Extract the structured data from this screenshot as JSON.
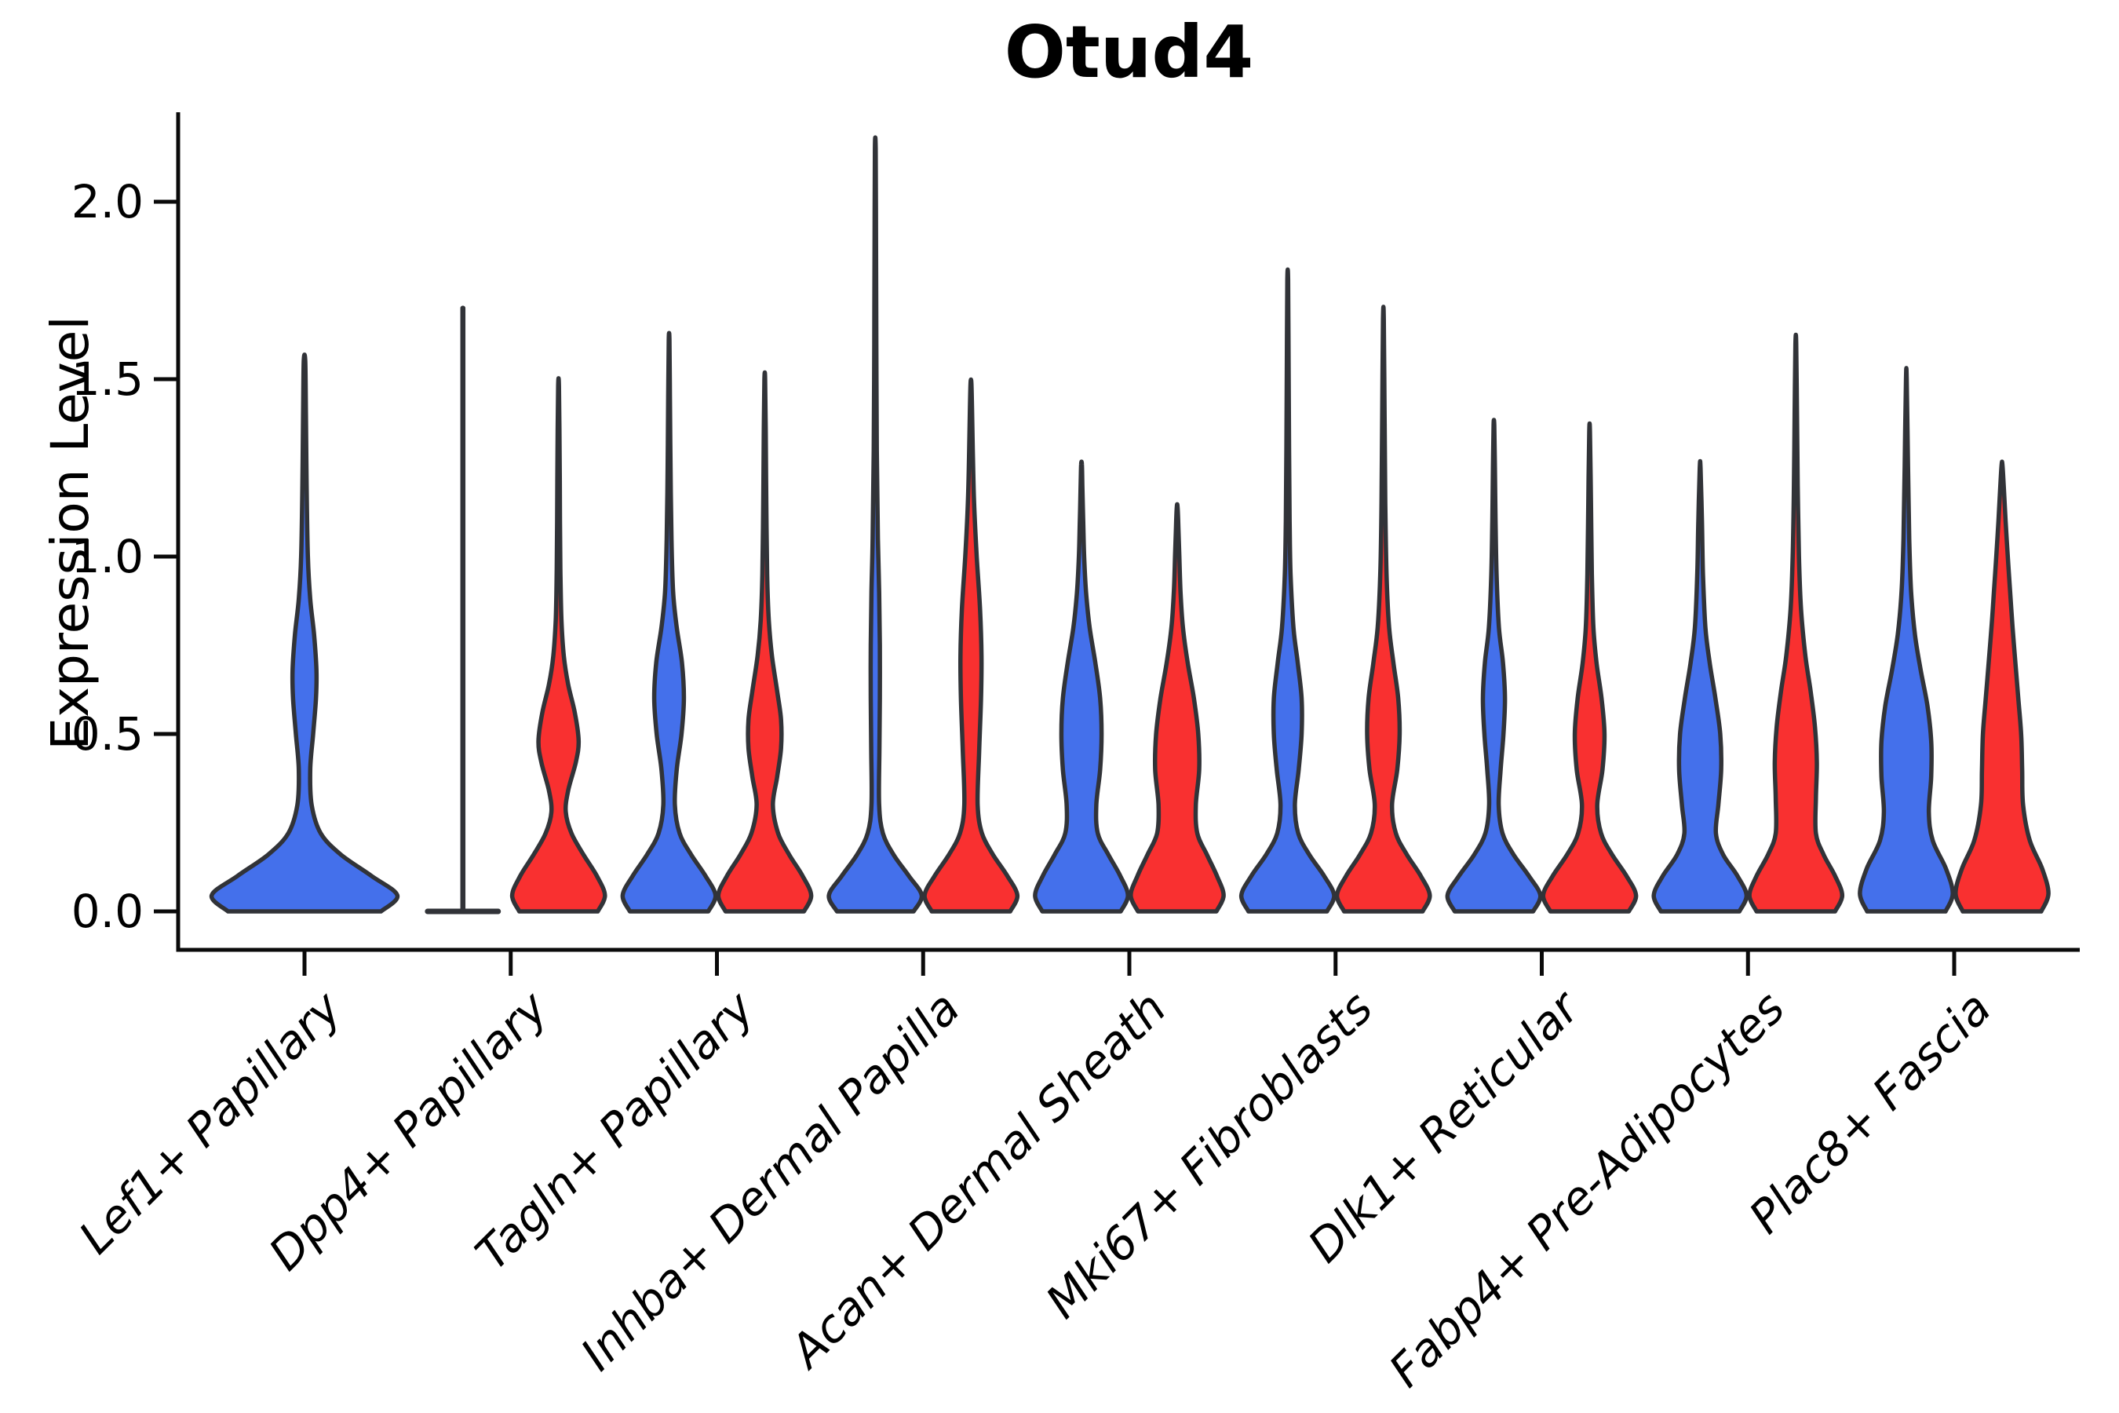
{
  "title": "Otud4",
  "axes": {
    "ylabel": "Expression Level",
    "ytick_labels": [
      "0.0",
      "0.5",
      "1.0",
      "1.5",
      "2.0"
    ],
    "ytick_values": [
      0.0,
      0.5,
      1.0,
      1.5,
      2.0
    ]
  },
  "colors": {
    "group_blue": "#4470EB",
    "group_red": "#F93030",
    "violin_outline": "#313338",
    "axis": "#0a0a0a"
  },
  "chart_data": {
    "type": "violin",
    "title": "Otud4",
    "xlabel": "",
    "ylabel": "Expression Level",
    "ylim": [
      0,
      2.25
    ],
    "yticks": [
      0.0,
      0.5,
      1.0,
      1.5,
      2.0
    ],
    "grid": false,
    "legend": "none",
    "categories": [
      "Lef1+ Papillary",
      "Dpp4+ Papillary",
      "Tagln+ Papillary",
      "Inhba+ Dermal Papilla",
      "Acan+ Dermal Sheath",
      "Mki67+ Fibroblasts",
      "Dlk1+ Reticular",
      "Fabp4+ Pre-Adipocytes",
      "Plac8+ Fascia"
    ],
    "groups": [
      {
        "name": "blue",
        "color": "#4470EB"
      },
      {
        "name": "red",
        "color": "#F93030"
      }
    ],
    "violins": [
      {
        "category": "Lef1+ Papillary",
        "group": "blue",
        "side_offset": 0,
        "halfwidth_frac": 0.464,
        "max_expression": 1.55,
        "collapsed": false,
        "density_profile": [
          [
            0,
            0.8
          ],
          [
            0.045,
            0.97
          ],
          [
            0.1,
            0.7
          ],
          [
            0.16,
            0.38
          ],
          [
            0.22,
            0.17
          ],
          [
            0.3,
            0.075
          ],
          [
            0.4,
            0.06
          ],
          [
            0.5,
            0.09
          ],
          [
            0.6,
            0.12
          ],
          [
            0.68,
            0.125
          ],
          [
            0.78,
            0.1
          ],
          [
            0.88,
            0.06
          ],
          [
            1.0,
            0.035
          ],
          [
            1.2,
            0.022
          ],
          [
            1.4,
            0.015
          ],
          [
            1.55,
            0.008
          ]
        ]
      },
      {
        "category": "Dpp4+ Papillary",
        "group": "blue",
        "side_offset": -0.232,
        "halfwidth_frac": 0.171,
        "max_expression": 1.7,
        "collapsed": true,
        "density_profile": [
          [
            0,
            1.0
          ],
          [
            1.7,
            0.0
          ]
        ]
      },
      {
        "category": "Dpp4+ Papillary",
        "group": "red",
        "side_offset": 0.232,
        "halfwidth_frac": 0.232,
        "max_expression": 1.48,
        "collapsed": false,
        "density_profile": [
          [
            0,
            0.82
          ],
          [
            0.045,
            0.97
          ],
          [
            0.1,
            0.8
          ],
          [
            0.16,
            0.52
          ],
          [
            0.22,
            0.27
          ],
          [
            0.28,
            0.15
          ],
          [
            0.34,
            0.2
          ],
          [
            0.42,
            0.36
          ],
          [
            0.48,
            0.42
          ],
          [
            0.56,
            0.34
          ],
          [
            0.64,
            0.2
          ],
          [
            0.72,
            0.11
          ],
          [
            0.82,
            0.06
          ],
          [
            0.95,
            0.04
          ],
          [
            1.1,
            0.03
          ],
          [
            1.3,
            0.022
          ],
          [
            1.48,
            0.008
          ]
        ]
      },
      {
        "category": "Tagln+ Papillary",
        "group": "blue",
        "side_offset": -0.232,
        "halfwidth_frac": 0.232,
        "max_expression": 1.61,
        "collapsed": false,
        "density_profile": [
          [
            0,
            0.82
          ],
          [
            0.045,
            0.97
          ],
          [
            0.1,
            0.76
          ],
          [
            0.16,
            0.46
          ],
          [
            0.22,
            0.22
          ],
          [
            0.3,
            0.12
          ],
          [
            0.4,
            0.16
          ],
          [
            0.5,
            0.26
          ],
          [
            0.6,
            0.31
          ],
          [
            0.7,
            0.27
          ],
          [
            0.8,
            0.16
          ],
          [
            0.9,
            0.085
          ],
          [
            1.05,
            0.05
          ],
          [
            1.25,
            0.03
          ],
          [
            1.45,
            0.018
          ],
          [
            1.61,
            0.008
          ]
        ]
      },
      {
        "category": "Tagln+ Papillary",
        "group": "red",
        "side_offset": 0.232,
        "halfwidth_frac": 0.232,
        "max_expression": 1.5,
        "collapsed": false,
        "density_profile": [
          [
            0,
            0.82
          ],
          [
            0.045,
            0.97
          ],
          [
            0.1,
            0.79
          ],
          [
            0.16,
            0.51
          ],
          [
            0.22,
            0.28
          ],
          [
            0.3,
            0.17
          ],
          [
            0.38,
            0.26
          ],
          [
            0.46,
            0.34
          ],
          [
            0.54,
            0.34
          ],
          [
            0.62,
            0.26
          ],
          [
            0.72,
            0.15
          ],
          [
            0.82,
            0.085
          ],
          [
            0.95,
            0.05
          ],
          [
            1.15,
            0.032
          ],
          [
            1.35,
            0.02
          ],
          [
            1.5,
            0.008
          ]
        ]
      },
      {
        "category": "Inhba+ Dermal Papilla",
        "group": "blue",
        "side_offset": -0.232,
        "halfwidth_frac": 0.232,
        "max_expression": 2.15,
        "collapsed": false,
        "density_profile": [
          [
            0,
            0.8
          ],
          [
            0.045,
            0.97
          ],
          [
            0.1,
            0.7
          ],
          [
            0.16,
            0.38
          ],
          [
            0.22,
            0.16
          ],
          [
            0.3,
            0.08
          ],
          [
            0.45,
            0.085
          ],
          [
            0.6,
            0.095
          ],
          [
            0.75,
            0.095
          ],
          [
            0.9,
            0.08
          ],
          [
            1.05,
            0.055
          ],
          [
            1.3,
            0.032
          ],
          [
            1.6,
            0.022
          ],
          [
            1.9,
            0.015
          ],
          [
            2.15,
            0.008
          ]
        ]
      },
      {
        "category": "Inhba+ Dermal Papilla",
        "group": "red",
        "side_offset": 0.232,
        "halfwidth_frac": 0.232,
        "max_expression": 1.49,
        "collapsed": false,
        "density_profile": [
          [
            0,
            0.82
          ],
          [
            0.045,
            0.97
          ],
          [
            0.1,
            0.76
          ],
          [
            0.16,
            0.46
          ],
          [
            0.22,
            0.23
          ],
          [
            0.3,
            0.14
          ],
          [
            0.45,
            0.17
          ],
          [
            0.6,
            0.21
          ],
          [
            0.72,
            0.22
          ],
          [
            0.85,
            0.19
          ],
          [
            1.0,
            0.12
          ],
          [
            1.15,
            0.065
          ],
          [
            1.3,
            0.038
          ],
          [
            1.42,
            0.022
          ],
          [
            1.49,
            0.008
          ]
        ]
      },
      {
        "category": "Acan+ Dermal Sheath",
        "group": "blue",
        "side_offset": -0.232,
        "halfwidth_frac": 0.232,
        "max_expression": 1.26,
        "collapsed": false,
        "density_profile": [
          [
            0,
            0.82
          ],
          [
            0.045,
            0.97
          ],
          [
            0.1,
            0.81
          ],
          [
            0.16,
            0.56
          ],
          [
            0.22,
            0.34
          ],
          [
            0.3,
            0.31
          ],
          [
            0.4,
            0.39
          ],
          [
            0.5,
            0.42
          ],
          [
            0.6,
            0.39
          ],
          [
            0.7,
            0.29
          ],
          [
            0.8,
            0.17
          ],
          [
            0.9,
            0.095
          ],
          [
            1.0,
            0.055
          ],
          [
            1.1,
            0.035
          ],
          [
            1.2,
            0.018
          ],
          [
            1.26,
            0.008
          ]
        ]
      },
      {
        "category": "Acan+ Dermal Sheath",
        "group": "red",
        "side_offset": 0.232,
        "halfwidth_frac": 0.232,
        "max_expression": 1.14,
        "collapsed": false,
        "density_profile": [
          [
            0,
            0.82
          ],
          [
            0.045,
            0.97
          ],
          [
            0.1,
            0.83
          ],
          [
            0.16,
            0.62
          ],
          [
            0.22,
            0.42
          ],
          [
            0.3,
            0.39
          ],
          [
            0.4,
            0.46
          ],
          [
            0.5,
            0.44
          ],
          [
            0.6,
            0.35
          ],
          [
            0.7,
            0.22
          ],
          [
            0.8,
            0.12
          ],
          [
            0.9,
            0.07
          ],
          [
            1.0,
            0.045
          ],
          [
            1.08,
            0.026
          ],
          [
            1.14,
            0.008
          ]
        ]
      },
      {
        "category": "Mki67+ Fibroblasts",
        "group": "blue",
        "side_offset": -0.232,
        "halfwidth_frac": 0.232,
        "max_expression": 1.78,
        "collapsed": false,
        "density_profile": [
          [
            0,
            0.82
          ],
          [
            0.045,
            0.97
          ],
          [
            0.1,
            0.76
          ],
          [
            0.16,
            0.45
          ],
          [
            0.22,
            0.22
          ],
          [
            0.3,
            0.15
          ],
          [
            0.4,
            0.23
          ],
          [
            0.5,
            0.29
          ],
          [
            0.6,
            0.29
          ],
          [
            0.7,
            0.21
          ],
          [
            0.8,
            0.12
          ],
          [
            0.95,
            0.06
          ],
          [
            1.1,
            0.04
          ],
          [
            1.3,
            0.028
          ],
          [
            1.55,
            0.018
          ],
          [
            1.78,
            0.008
          ]
        ]
      },
      {
        "category": "Mki67+ Fibroblasts",
        "group": "red",
        "side_offset": 0.232,
        "halfwidth_frac": 0.232,
        "max_expression": 1.67,
        "collapsed": false,
        "density_profile": [
          [
            0,
            0.82
          ],
          [
            0.045,
            0.97
          ],
          [
            0.1,
            0.78
          ],
          [
            0.16,
            0.49
          ],
          [
            0.22,
            0.26
          ],
          [
            0.3,
            0.18
          ],
          [
            0.4,
            0.29
          ],
          [
            0.5,
            0.34
          ],
          [
            0.6,
            0.31
          ],
          [
            0.7,
            0.21
          ],
          [
            0.8,
            0.12
          ],
          [
            0.95,
            0.065
          ],
          [
            1.15,
            0.04
          ],
          [
            1.4,
            0.025
          ],
          [
            1.67,
            0.008
          ]
        ]
      },
      {
        "category": "Dlk1+ Reticular",
        "group": "blue",
        "side_offset": -0.232,
        "halfwidth_frac": 0.232,
        "max_expression": 1.37,
        "collapsed": false,
        "density_profile": [
          [
            0,
            0.82
          ],
          [
            0.045,
            0.97
          ],
          [
            0.1,
            0.73
          ],
          [
            0.16,
            0.41
          ],
          [
            0.22,
            0.18
          ],
          [
            0.3,
            0.1
          ],
          [
            0.4,
            0.14
          ],
          [
            0.5,
            0.2
          ],
          [
            0.6,
            0.23
          ],
          [
            0.7,
            0.19
          ],
          [
            0.8,
            0.105
          ],
          [
            0.95,
            0.055
          ],
          [
            1.1,
            0.034
          ],
          [
            1.25,
            0.02
          ],
          [
            1.37,
            0.008
          ]
        ]
      },
      {
        "category": "Dlk1+ Reticular",
        "group": "red",
        "side_offset": 0.232,
        "halfwidth_frac": 0.232,
        "max_expression": 1.35,
        "collapsed": false,
        "density_profile": [
          [
            0,
            0.82
          ],
          [
            0.045,
            0.97
          ],
          [
            0.1,
            0.77
          ],
          [
            0.16,
            0.47
          ],
          [
            0.22,
            0.24
          ],
          [
            0.3,
            0.16
          ],
          [
            0.4,
            0.27
          ],
          [
            0.5,
            0.31
          ],
          [
            0.6,
            0.25
          ],
          [
            0.7,
            0.145
          ],
          [
            0.8,
            0.08
          ],
          [
            0.95,
            0.047
          ],
          [
            1.15,
            0.028
          ],
          [
            1.35,
            0.008
          ]
        ]
      },
      {
        "category": "Fabp4+ Pre-Adipocytes",
        "group": "blue",
        "side_offset": -0.232,
        "halfwidth_frac": 0.232,
        "max_expression": 1.25,
        "collapsed": false,
        "density_profile": [
          [
            0,
            0.82
          ],
          [
            0.045,
            0.97
          ],
          [
            0.1,
            0.78
          ],
          [
            0.16,
            0.48
          ],
          [
            0.22,
            0.33
          ],
          [
            0.3,
            0.38
          ],
          [
            0.4,
            0.44
          ],
          [
            0.5,
            0.42
          ],
          [
            0.6,
            0.32
          ],
          [
            0.7,
            0.2
          ],
          [
            0.8,
            0.11
          ],
          [
            0.95,
            0.06
          ],
          [
            1.1,
            0.038
          ],
          [
            1.25,
            0.008
          ]
        ]
      },
      {
        "category": "Fabp4+ Pre-Adipocytes",
        "group": "red",
        "side_offset": 0.232,
        "halfwidth_frac": 0.232,
        "max_expression": 1.6,
        "collapsed": false,
        "density_profile": [
          [
            0,
            0.82
          ],
          [
            0.045,
            0.97
          ],
          [
            0.1,
            0.82
          ],
          [
            0.16,
            0.58
          ],
          [
            0.22,
            0.42
          ],
          [
            0.32,
            0.42
          ],
          [
            0.42,
            0.44
          ],
          [
            0.52,
            0.4
          ],
          [
            0.62,
            0.31
          ],
          [
            0.72,
            0.2
          ],
          [
            0.85,
            0.11
          ],
          [
            1.0,
            0.065
          ],
          [
            1.2,
            0.04
          ],
          [
            1.4,
            0.025
          ],
          [
            1.6,
            0.008
          ]
        ]
      },
      {
        "category": "Plac8+ Fascia",
        "group": "blue",
        "side_offset": -0.232,
        "halfwidth_frac": 0.232,
        "max_expression": 1.5,
        "collapsed": false,
        "density_profile": [
          [
            0,
            0.82
          ],
          [
            0.05,
            0.97
          ],
          [
            0.12,
            0.83
          ],
          [
            0.2,
            0.55
          ],
          [
            0.28,
            0.47
          ],
          [
            0.38,
            0.52
          ],
          [
            0.48,
            0.52
          ],
          [
            0.58,
            0.44
          ],
          [
            0.68,
            0.3
          ],
          [
            0.78,
            0.18
          ],
          [
            0.9,
            0.1
          ],
          [
            1.05,
            0.06
          ],
          [
            1.25,
            0.035
          ],
          [
            1.5,
            0.008
          ]
        ]
      },
      {
        "category": "Plac8+ Fascia",
        "group": "red",
        "side_offset": 0.232,
        "halfwidth_frac": 0.232,
        "max_expression": 1.26,
        "collapsed": false,
        "density_profile": [
          [
            0,
            0.82
          ],
          [
            0.05,
            0.97
          ],
          [
            0.12,
            0.84
          ],
          [
            0.2,
            0.58
          ],
          [
            0.3,
            0.44
          ],
          [
            0.4,
            0.42
          ],
          [
            0.5,
            0.4
          ],
          [
            0.6,
            0.34
          ],
          [
            0.7,
            0.28
          ],
          [
            0.8,
            0.22
          ],
          [
            0.9,
            0.17
          ],
          [
            1.0,
            0.12
          ],
          [
            1.1,
            0.075
          ],
          [
            1.2,
            0.035
          ],
          [
            1.26,
            0.008
          ]
        ]
      }
    ]
  }
}
